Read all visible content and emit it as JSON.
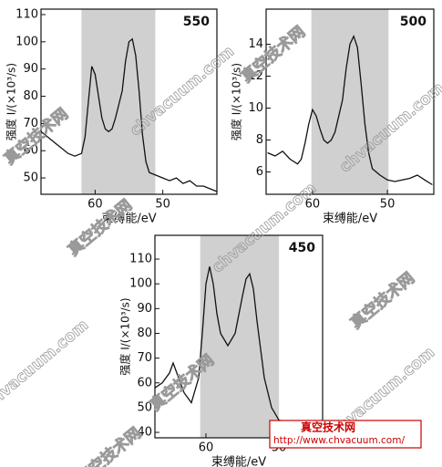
{
  "chart_data": [
    {
      "type": "line",
      "annotation": "550",
      "xlabel": "束缚能/eV",
      "ylabel": "强度 I/(×10³/s)",
      "xlim": [
        68,
        42
      ],
      "xticks": [
        60,
        50
      ],
      "ylim": [
        44,
        112
      ],
      "yticks": [
        50,
        60,
        70,
        80,
        90,
        100,
        110
      ],
      "x": [
        68,
        67,
        66,
        65,
        64,
        63,
        62,
        61.5,
        61,
        60.5,
        60,
        59.5,
        59,
        58.5,
        58,
        57.5,
        57,
        56,
        55.5,
        55,
        54.5,
        54,
        53.5,
        53,
        52.5,
        52,
        51,
        50,
        49,
        48,
        47,
        46,
        45,
        44,
        43,
        42
      ],
      "series": [
        {
          "color": "#111111",
          "values": [
            67,
            65,
            63,
            61,
            59,
            58,
            59,
            65,
            78,
            91,
            88,
            80,
            72,
            68,
            67,
            68,
            72,
            82,
            93,
            100,
            101,
            95,
            82,
            66,
            56,
            52,
            51,
            50,
            49,
            50,
            48,
            49,
            47,
            47,
            46,
            45
          ]
        }
      ]
    },
    {
      "type": "line",
      "annotation": "500",
      "xlabel": "束缚能/eV",
      "ylabel": "强度 I/(×10³/s)",
      "xlim": [
        66.2,
        43.8
      ],
      "xticks": [
        60,
        50
      ],
      "ylim": [
        4.6,
        16.2
      ],
      "yticks": [
        6,
        8,
        10,
        12,
        14
      ],
      "x": [
        66,
        65,
        64,
        63,
        62,
        61.5,
        61,
        60.5,
        60,
        59.5,
        59,
        58.5,
        58,
        57.5,
        57,
        56,
        55.5,
        55,
        54.5,
        54,
        53.5,
        53,
        52.5,
        52,
        51,
        50,
        49,
        48,
        47,
        46,
        45,
        44
      ],
      "series": [
        {
          "color": "#111111",
          "values": [
            7.2,
            7.0,
            7.3,
            6.8,
            6.5,
            6.8,
            7.8,
            9.0,
            9.9,
            9.5,
            8.7,
            8.0,
            7.8,
            8.0,
            8.5,
            10.5,
            12.5,
            14.0,
            14.5,
            13.8,
            11.5,
            9.0,
            7.2,
            6.2,
            5.8,
            5.5,
            5.4,
            5.5,
            5.6,
            5.8,
            5.5,
            5.2
          ]
        }
      ]
    },
    {
      "type": "line",
      "annotation": "450",
      "xlabel": "束缚能/eV",
      "ylabel": "强度 I/(×10³/s)",
      "xlim": [
        67,
        44
      ],
      "xticks": [
        60,
        50
      ],
      "ylim": [
        37.8,
        119.6
      ],
      "yticks": [
        40,
        50,
        60,
        70,
        80,
        90,
        100,
        110
      ],
      "x": [
        67,
        66,
        65,
        64.5,
        64,
        63,
        62,
        61,
        60.5,
        60,
        59.5,
        59,
        58.5,
        58,
        57,
        56,
        55,
        54.5,
        54,
        53.5,
        53,
        52,
        51,
        50,
        49,
        48,
        47,
        46,
        45,
        44
      ],
      "series": [
        {
          "color": "#111111",
          "values": [
            58,
            60,
            64,
            68,
            64,
            56,
            52,
            62,
            80,
            100,
            107,
            100,
            88,
            80,
            75,
            80,
            95,
            102,
            104,
            98,
            85,
            62,
            50,
            45,
            44,
            43,
            42,
            41,
            41,
            40
          ]
        }
      ]
    }
  ],
  "source_box": {
    "title": "真空技术网",
    "url": "http://www.chvacuum.com/"
  },
  "watermark": [
    "真空技术网",
    "chvacuum.com"
  ]
}
